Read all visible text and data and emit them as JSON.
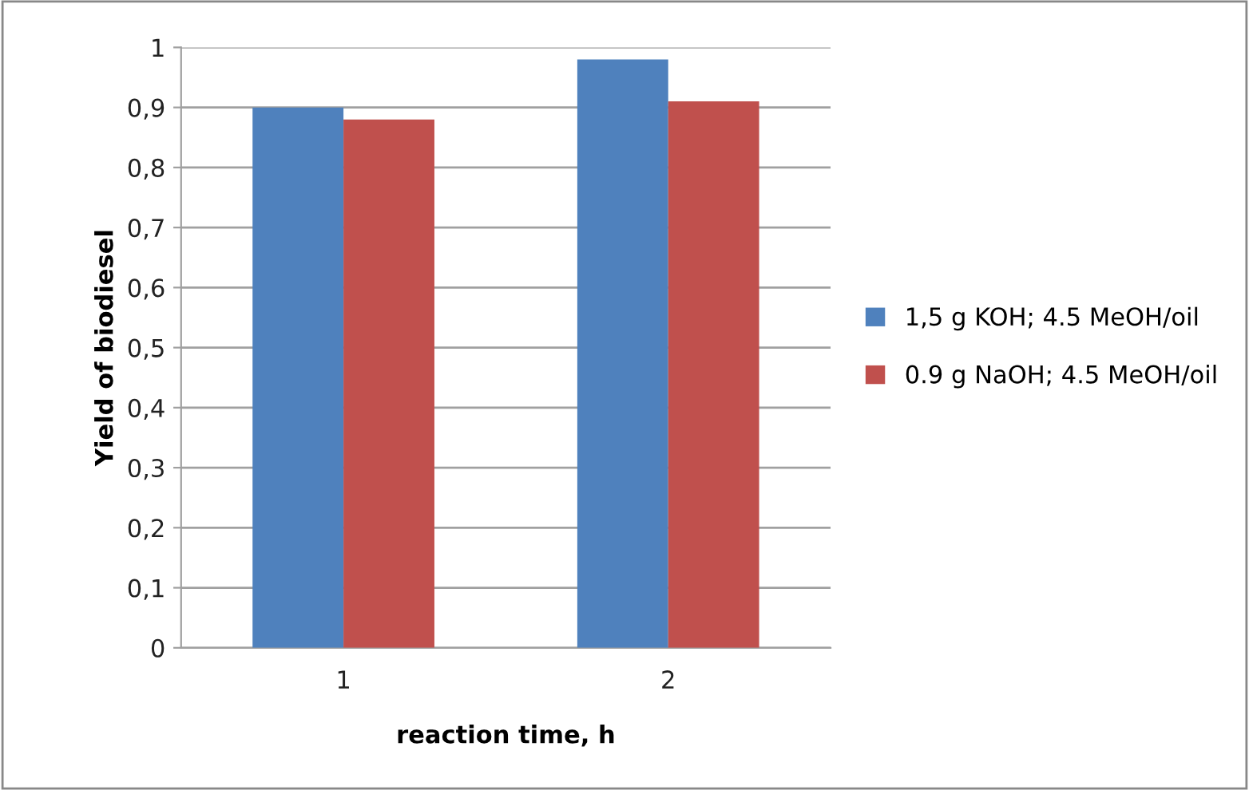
{
  "chart_data": {
    "type": "bar",
    "xlabel": "reaction time, h",
    "ylabel": "Yield of biodiesel",
    "categories": [
      "1",
      "2"
    ],
    "series": [
      {
        "name": "1,5 g KOH; 4.5 MeOH/oil",
        "color": "#4f81bd",
        "values": [
          0.9,
          0.98
        ]
      },
      {
        "name": "0.9 g NaOH; 4.5 MeOH/oil",
        "color": "#c0504d",
        "values": [
          0.88,
          0.91
        ]
      }
    ],
    "ylim": [
      0,
      1
    ],
    "yticks": [
      0,
      {
        "value": 0.1,
        "label": "0,1"
      },
      {
        "value": 0.2,
        "label": "0,2"
      },
      {
        "value": 0.3,
        "label": "0,3"
      },
      {
        "value": 0.4,
        "label": "0,4"
      },
      {
        "value": 0.5,
        "label": "0,5"
      },
      {
        "value": 0.6,
        "label": "0,6"
      },
      {
        "value": 0.7,
        "label": "0,7"
      },
      {
        "value": 0.8,
        "label": "0,8"
      },
      {
        "value": 0.9,
        "label": "0,9"
      },
      1
    ],
    "grid": "y",
    "legend": "right"
  }
}
